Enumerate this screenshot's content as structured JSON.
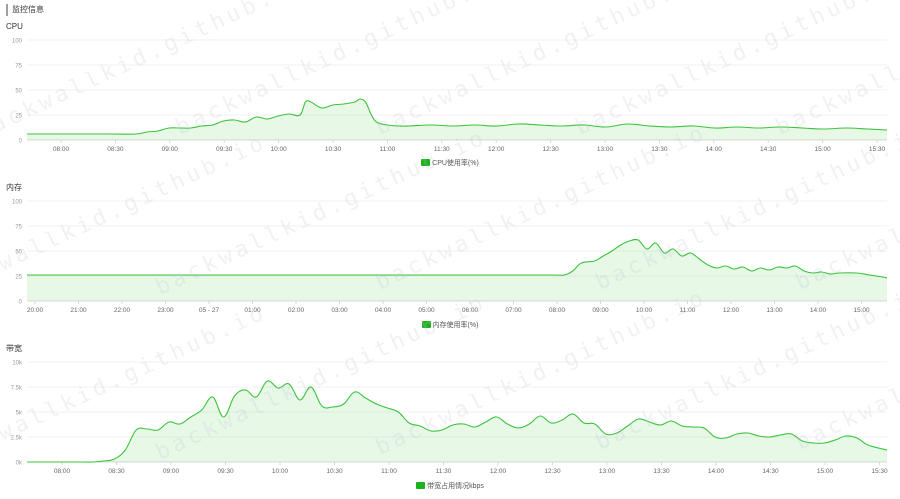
{
  "header": {
    "title": "监控信息"
  },
  "colors": {
    "line": "#3cc33c",
    "fill": "rgba(60,195,60,0.12)",
    "legend": "#1db31d",
    "grid": "#ececec",
    "axis": "#cfcfcf"
  },
  "watermark": {
    "text": "backwallkid.github.io"
  },
  "chart_data": [
    {
      "type": "area",
      "title": "CPU",
      "legend": "CPU使用率(%)",
      "ylim": [
        0,
        100
      ],
      "yticks": [
        "0",
        "25",
        "50",
        "75",
        "100"
      ],
      "xticks": [
        "08:00",
        "08:30",
        "09:00",
        "09:30",
        "10:00",
        "10:30",
        "11:00",
        "11:30",
        "12:00",
        "12:30",
        "13:00",
        "13:30",
        "14:00",
        "14:30",
        "15:00",
        "15:30"
      ],
      "series": [
        {
          "x": [
            0,
            0.5,
            1,
            1.5,
            2,
            2.2,
            2.4,
            2.6,
            2.8,
            3,
            3.2,
            3.4,
            3.6,
            3.8,
            4,
            4.2,
            4.4,
            4.6,
            4.8,
            5,
            5.1,
            5.2,
            5.4,
            5.6,
            5.8,
            6,
            6.1,
            6.2,
            6.3,
            6.4,
            6.6,
            6.8,
            7,
            7.4,
            7.8,
            8.2,
            8.6,
            9,
            9.4,
            9.8,
            10.2,
            10.6,
            11,
            11.4,
            11.8,
            12.2,
            12.6,
            13,
            13.4,
            13.8,
            14.2,
            14.6,
            15,
            15.4,
            15.75
          ],
          "y": [
            6,
            6,
            6,
            6,
            6,
            8,
            9,
            12,
            12,
            12,
            14,
            15,
            19,
            20,
            18,
            23,
            21,
            24,
            26,
            25,
            38,
            38,
            32,
            35,
            36,
            38,
            41,
            38,
            26,
            18,
            15,
            14,
            14,
            15,
            14,
            15,
            14,
            16,
            15,
            14,
            15,
            13,
            16,
            14,
            13,
            14,
            12,
            13,
            12,
            13,
            12,
            11,
            12,
            11,
            10
          ]
        }
      ]
    },
    {
      "type": "area",
      "title": "内存",
      "legend": "内存使用率(%)",
      "ylim": [
        0,
        100
      ],
      "yticks": [
        "0",
        "25",
        "50",
        "75",
        "100"
      ],
      "xticks": [
        "20:00",
        "21:00",
        "22:00",
        "23:00",
        "05 - 27",
        "01:00",
        "02:00",
        "03:00",
        "04:00",
        "05:00",
        "06:00",
        "07:00",
        "08:00",
        "09:00",
        "10:00",
        "11:00",
        "12:00",
        "13:00",
        "14:00",
        "15:00"
      ],
      "series": [
        {
          "x": [
            0,
            2,
            4,
            6,
            8,
            10,
            12,
            12.3,
            12.5,
            12.7,
            13,
            13.2,
            13.4,
            13.6,
            13.8,
            14,
            14.2,
            14.4,
            14.6,
            14.8,
            15,
            15.2,
            15.4,
            15.6,
            15.8,
            16,
            16.2,
            16.4,
            16.6,
            16.8,
            17,
            17.2,
            17.4,
            17.6,
            17.8,
            18,
            18.2,
            18.4,
            18.6,
            19,
            19.3,
            19.6,
            19.7
          ],
          "y": [
            26,
            26,
            26,
            26,
            26,
            26,
            26,
            26,
            30,
            38,
            40,
            45,
            50,
            56,
            60,
            61,
            52,
            58,
            48,
            52,
            45,
            48,
            42,
            36,
            33,
            35,
            32,
            34,
            30,
            33,
            31,
            34,
            33,
            35,
            30,
            28,
            29,
            27,
            28,
            28,
            26,
            24,
            23
          ]
        }
      ]
    },
    {
      "type": "area",
      "title": "带宽",
      "legend": "带宽占用情况kbps",
      "ylim": [
        0,
        10000
      ],
      "yticks": [
        "0k",
        "2.5k",
        "5k",
        "7.5k",
        "10k"
      ],
      "xticks": [
        "08:00",
        "08:30",
        "09:00",
        "09:30",
        "10:00",
        "10:30",
        "11:00",
        "11:30",
        "12:00",
        "12:30",
        "13:00",
        "13:30",
        "14:00",
        "14:30",
        "15:00",
        "15:30"
      ],
      "series": [
        {
          "x": [
            0,
            0.5,
            1,
            1.2,
            1.4,
            1.6,
            1.8,
            2,
            2.2,
            2.4,
            2.6,
            2.8,
            3,
            3.2,
            3.4,
            3.6,
            3.8,
            4,
            4.2,
            4.4,
            4.6,
            4.8,
            5,
            5.2,
            5.4,
            5.6,
            5.8,
            6,
            6.2,
            6.4,
            6.6,
            6.8,
            7,
            7.2,
            7.4,
            7.6,
            7.8,
            8,
            8.2,
            8.4,
            8.6,
            8.8,
            9,
            9.2,
            9.4,
            9.6,
            9.8,
            10,
            10.2,
            10.4,
            10.6,
            10.8,
            11,
            11.2,
            11.4,
            11.6,
            11.8,
            12,
            12.2,
            12.4,
            12.6,
            12.8,
            13,
            13.2,
            13.4,
            13.6,
            13.8,
            14,
            14.2,
            14.4,
            14.6,
            14.8,
            15,
            15.2,
            15.4,
            15.75
          ],
          "y": [
            0,
            0,
            0,
            0,
            100,
            300,
            1200,
            3200,
            3300,
            3200,
            4000,
            3800,
            4500,
            5200,
            6500,
            4500,
            6600,
            7200,
            6500,
            8100,
            7400,
            7800,
            6200,
            7500,
            5600,
            5500,
            5800,
            7000,
            6400,
            5800,
            5400,
            5000,
            3900,
            3600,
            3100,
            3200,
            3700,
            3800,
            3500,
            4000,
            4500,
            3800,
            3400,
            3800,
            4600,
            3900,
            4200,
            4800,
            3900,
            3800,
            2800,
            2900,
            3600,
            4300,
            4000,
            3700,
            4100,
            3600,
            3500,
            3400,
            2500,
            2400,
            2800,
            2900,
            2600,
            2500,
            2700,
            2800,
            2100,
            1900,
            1900,
            2200,
            2600,
            2400,
            1700,
            1200
          ]
        }
      ]
    }
  ]
}
